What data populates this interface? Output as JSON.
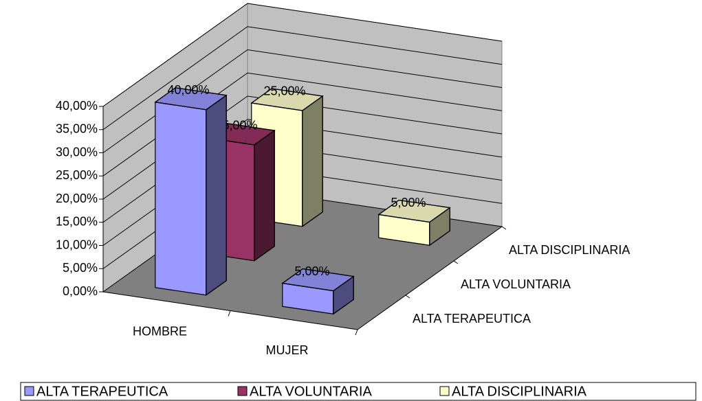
{
  "chart_data": {
    "type": "bar3d",
    "categories": [
      "HOMBRE",
      "MUJER"
    ],
    "series": [
      {
        "name": "ALTA TERAPEUTICA",
        "color": "#9999ff",
        "values": [
          40,
          5
        ],
        "value_labels": [
          "40,00%",
          "5,00%"
        ]
      },
      {
        "name": "ALTA  VOLUNTARIA",
        "color": "#993366",
        "values": [
          25,
          null
        ],
        "value_labels": [
          "25,00%",
          null
        ]
      },
      {
        "name": "ALTA  DISCIPLINARIA",
        "color": "#ffffcc",
        "values": [
          25,
          5
        ],
        "value_labels": [
          "25,00%",
          "5,00%"
        ]
      }
    ],
    "ylim": [
      0,
      40
    ],
    "yticks": [
      {
        "value": 0,
        "label": "0,00%"
      },
      {
        "value": 5,
        "label": "5,00%"
      },
      {
        "value": 10,
        "label": "10,00%"
      },
      {
        "value": 15,
        "label": "15,00%"
      },
      {
        "value": 20,
        "label": "20,00%"
      },
      {
        "value": 25,
        "label": "25,00%"
      },
      {
        "value": 30,
        "label": "30,00%"
      },
      {
        "value": 35,
        "label": "35,00%"
      },
      {
        "value": 40,
        "label": "40,00%"
      }
    ],
    "grid": true,
    "legend": "bottom"
  }
}
